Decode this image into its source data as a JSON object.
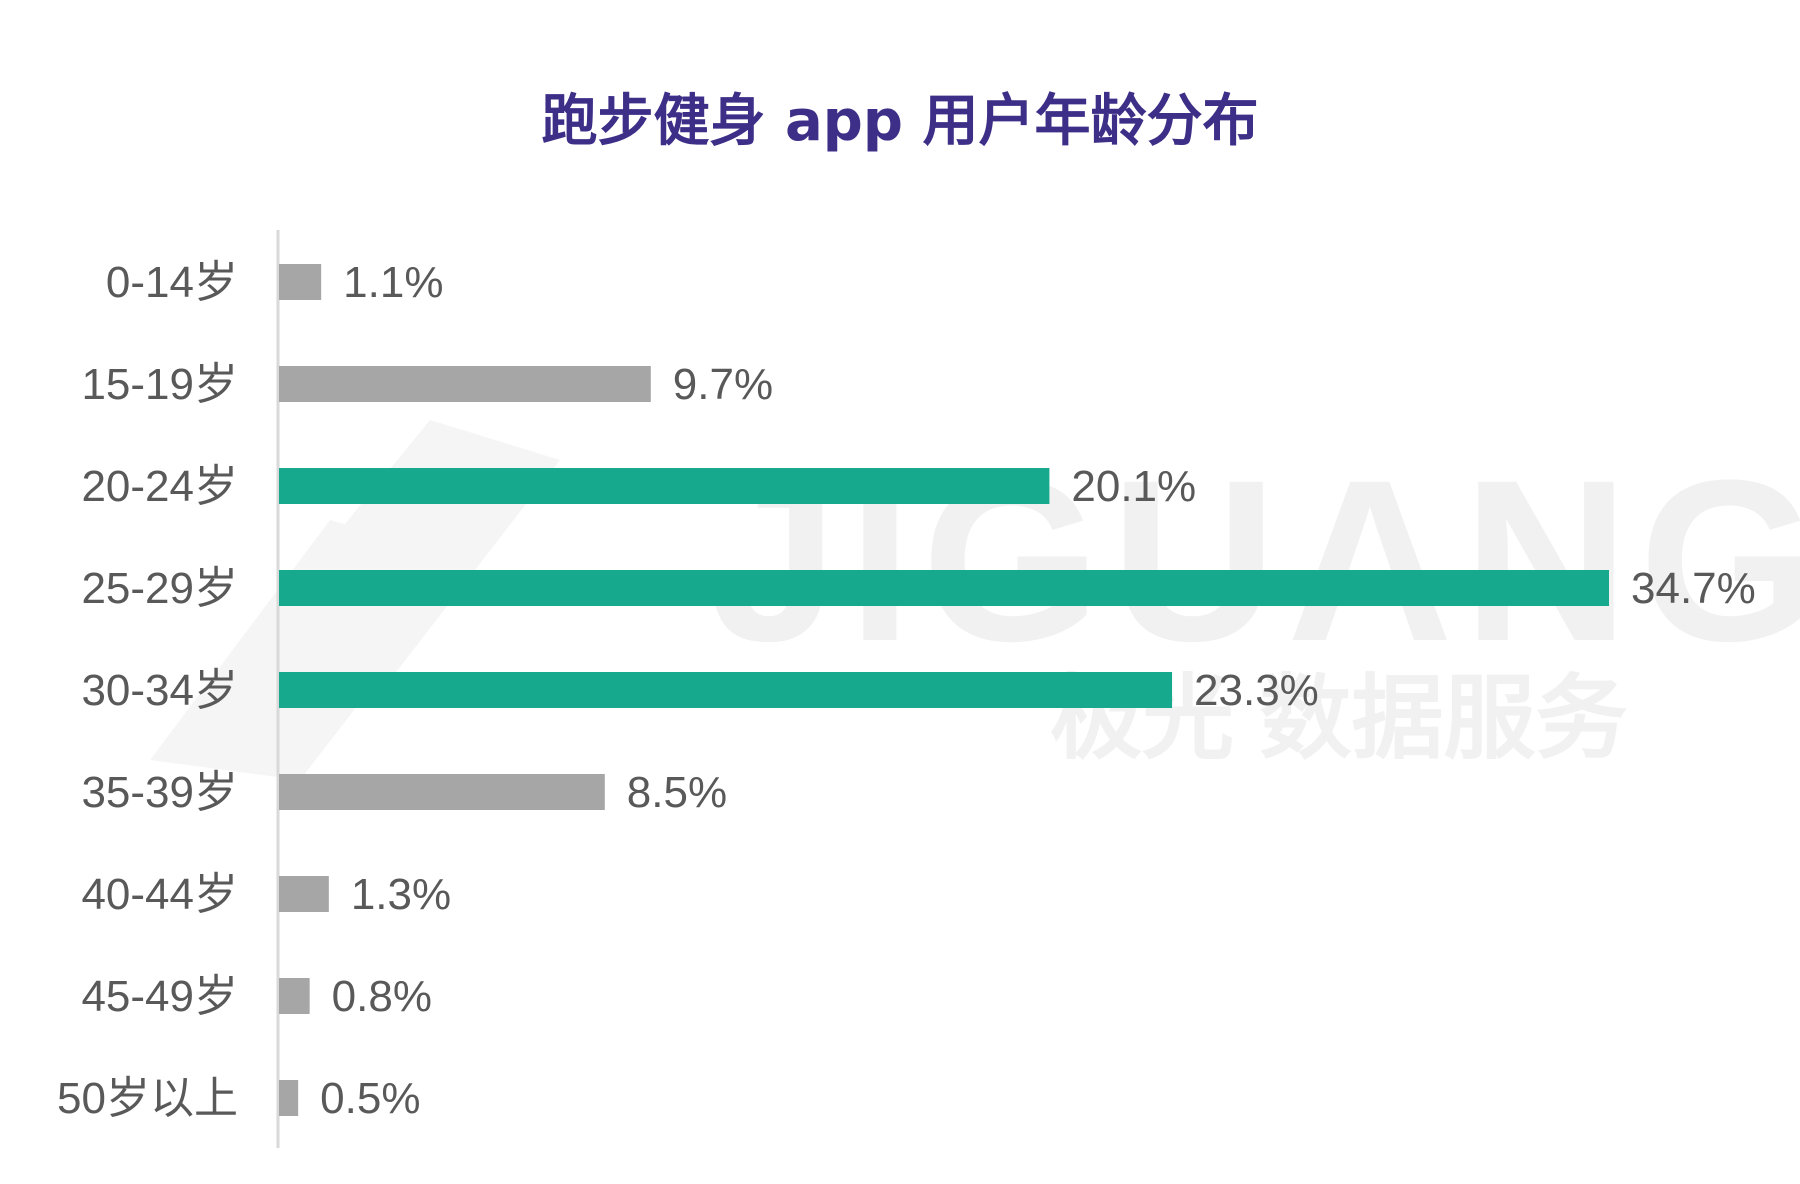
{
  "chart_data": {
    "type": "bar",
    "orientation": "horizontal",
    "title": "跑步健身 app 用户年龄分布",
    "categories": [
      "0-14岁",
      "15-19岁",
      "20-24岁",
      "25-29岁",
      "30-34岁",
      "35-39岁",
      "40-44岁",
      "45-49岁",
      "50岁以上"
    ],
    "values": [
      1.1,
      9.7,
      20.1,
      34.7,
      23.3,
      8.5,
      1.3,
      0.8,
      0.5
    ],
    "value_labels": [
      "1.1%",
      "9.7%",
      "20.1%",
      "34.7%",
      "23.3%",
      "8.5%",
      "1.3%",
      "0.8%",
      "0.5%"
    ],
    "highlighted": [
      false,
      false,
      true,
      true,
      true,
      false,
      false,
      false,
      false
    ],
    "unit": "%",
    "xlim": [
      0,
      34.7
    ],
    "grid": false,
    "legend": "none",
    "colors": {
      "highlight": "#17a98e",
      "default": "#a6a6a6",
      "title": "#3d2f87",
      "label": "#595959",
      "axis": "#d9d9d9"
    }
  },
  "watermark": {
    "brand_en": "JIGUANG",
    "brand_zh": "极光 数据服务",
    "color": "#f1f1f1"
  }
}
